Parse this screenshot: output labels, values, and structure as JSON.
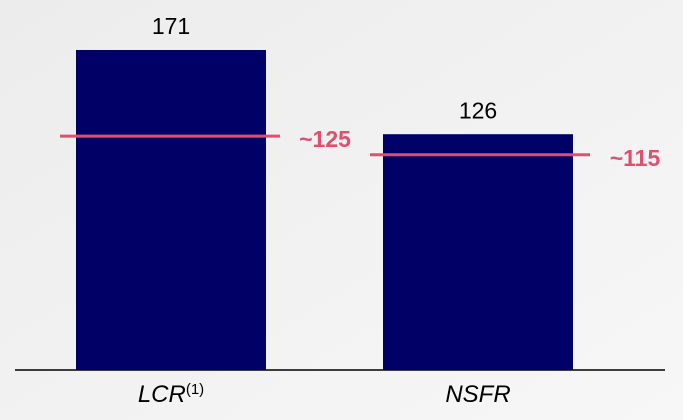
{
  "chart_data": {
    "type": "bar",
    "categories": [
      "LCR",
      "NSFR"
    ],
    "category_superscripts": [
      "(1)",
      null
    ],
    "values": [
      171,
      126
    ],
    "color": "#000066",
    "thresholds": [
      {
        "value": 125,
        "label": "~125"
      },
      {
        "value": 115,
        "label": "~115"
      }
    ],
    "threshold_color": "#e0506e"
  }
}
